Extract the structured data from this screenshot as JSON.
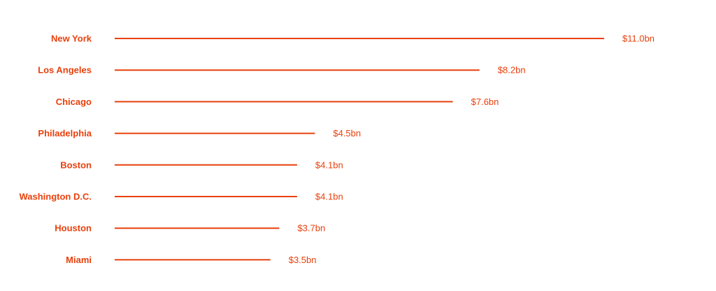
{
  "chart_data": {
    "type": "bar",
    "orientation": "horizontal",
    "title": "",
    "xlabel": "",
    "ylabel": "",
    "categories": [
      "New York",
      "Los Angeles",
      "Chicago",
      "Philadelphia",
      "Boston",
      "Washington D.C.",
      "Houston",
      "Miami"
    ],
    "values": [
      11.0,
      8.2,
      7.6,
      4.5,
      4.1,
      4.1,
      3.7,
      3.5
    ],
    "value_labels": [
      "$11.0bn",
      "$8.2bn",
      "$7.6bn",
      "$4.5bn",
      "$4.1bn",
      "$4.1bn",
      "$3.7bn",
      "$3.5bn"
    ],
    "grid": false,
    "legend": "none",
    "color": "#e8400c"
  }
}
